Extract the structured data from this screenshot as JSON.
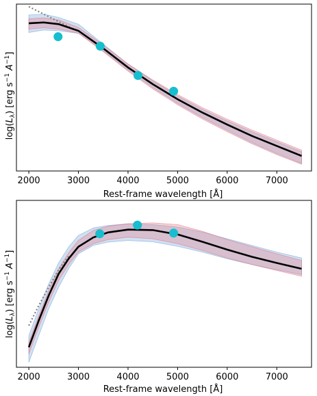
{
  "chart_data": [
    {
      "type": "line",
      "xlabel": "Rest-frame wavelength [Å]",
      "ylabel": "log(L_λ) [erg s⁻¹ A⁻¹]",
      "xlim": [
        1750,
        7700
      ],
      "ylim": [
        0,
        1
      ],
      "xticks": [
        2000,
        3000,
        4000,
        5000,
        6000,
        7000
      ],
      "yticks": [],
      "grid": false,
      "model": {
        "x": [
          2000,
          2300,
          2600,
          3000,
          3500,
          4000,
          4500,
          5000,
          5500,
          6000,
          6500,
          7000,
          7500
        ],
        "y": [
          0.885,
          0.89,
          0.88,
          0.84,
          0.735,
          0.62,
          0.52,
          0.43,
          0.35,
          0.278,
          0.21,
          0.15,
          0.09
        ],
        "lo_blue": [
          0.83,
          0.845,
          0.84,
          0.825,
          0.72,
          0.605,
          0.5,
          0.405,
          0.32,
          0.243,
          0.17,
          0.105,
          0.045
        ],
        "hi_blue": [
          0.935,
          0.94,
          0.92,
          0.88,
          0.76,
          0.64,
          0.54,
          0.45,
          0.37,
          0.3,
          0.235,
          0.175,
          0.115
        ],
        "lo_red": [
          0.85,
          0.858,
          0.85,
          0.826,
          0.715,
          0.598,
          0.492,
          0.397,
          0.312,
          0.235,
          0.163,
          0.098,
          0.04
        ],
        "hi_red": [
          0.912,
          0.918,
          0.905,
          0.86,
          0.755,
          0.642,
          0.545,
          0.458,
          0.38,
          0.31,
          0.245,
          0.185,
          0.125
        ]
      },
      "dotted": {
        "x": [
          2000,
          2300,
          2600,
          2900
        ],
        "y": [
          0.985,
          0.94,
          0.895,
          0.85
        ]
      },
      "points": {
        "x": [
          2590,
          3440,
          4200,
          4920
        ],
        "y": [
          0.805,
          0.748,
          0.572,
          0.478
        ]
      }
    },
    {
      "type": "line",
      "xlabel": "Rest-frame wavelength [Å]",
      "ylabel": "log(L_λ) [erg s⁻¹ A⁻¹]",
      "xlim": [
        1750,
        7700
      ],
      "ylim": [
        0,
        1
      ],
      "xticks": [
        2000,
        3000,
        4000,
        5000,
        6000,
        7000
      ],
      "yticks": [],
      "grid": false,
      "model": {
        "x": [
          2000,
          2200,
          2400,
          2600,
          2800,
          3000,
          3300,
          3600,
          4000,
          4500,
          5000,
          5500,
          6000,
          6500,
          7000,
          7500
        ],
        "y": [
          0.12,
          0.28,
          0.43,
          0.56,
          0.65,
          0.722,
          0.778,
          0.808,
          0.825,
          0.822,
          0.796,
          0.752,
          0.705,
          0.662,
          0.625,
          0.59
        ],
        "lo_blue": [
          0.03,
          0.19,
          0.35,
          0.48,
          0.59,
          0.68,
          0.73,
          0.75,
          0.76,
          0.752,
          0.725,
          0.69,
          0.65,
          0.615,
          0.585,
          0.555
        ],
        "hi_blue": [
          0.19,
          0.35,
          0.5,
          0.625,
          0.72,
          0.79,
          0.835,
          0.85,
          0.86,
          0.855,
          0.84,
          0.81,
          0.77,
          0.73,
          0.69,
          0.655
        ],
        "lo_red": [
          0.08,
          0.24,
          0.39,
          0.52,
          0.615,
          0.69,
          0.74,
          0.765,
          0.78,
          0.77,
          0.74,
          0.7,
          0.655,
          0.615,
          0.58,
          0.545
        ],
        "hi_red": [
          0.15,
          0.31,
          0.46,
          0.59,
          0.685,
          0.76,
          0.82,
          0.845,
          0.86,
          0.865,
          0.855,
          0.815,
          0.765,
          0.722,
          0.68,
          0.64
        ]
      },
      "dotted": {
        "x": [
          2000,
          2200,
          2400,
          2600,
          2800
        ],
        "y": [
          0.25,
          0.37,
          0.48,
          0.585,
          0.665
        ]
      },
      "points": {
        "x": [
          3430,
          4190,
          4920
        ],
        "y": [
          0.8,
          0.852,
          0.804
        ]
      }
    }
  ]
}
